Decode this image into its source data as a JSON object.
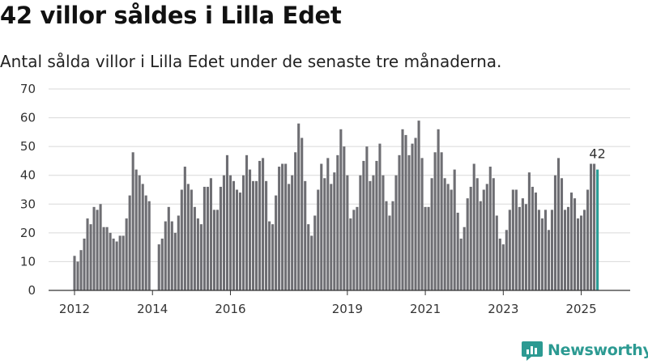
{
  "title": "42 villor såldes i Lilla Edet",
  "subtitle": "Antal sålda villor i Lilla Edet under de senaste tre månaderna.",
  "brand": {
    "name": "Newsworthy",
    "icon": "newsworthy-logo-icon",
    "color": "#2c9a92"
  },
  "colors": {
    "bar": "#6e6e73",
    "highlight": "#2a9d96",
    "grid": "#d9d9d9",
    "axis": "#333333"
  },
  "chart_data": {
    "type": "bar",
    "title": "42 villor såldes i Lilla Edet",
    "subtitle": "Antal sålda villor i Lilla Edet under de senaste tre månaderna.",
    "xlabel": "",
    "ylabel": "",
    "ylim": [
      0,
      70
    ],
    "y_ticks": [
      0,
      10,
      20,
      30,
      40,
      50,
      60,
      70
    ],
    "x_ticks": [
      {
        "label": "2012",
        "at": "2012-01"
      },
      {
        "label": "2014",
        "at": "2014-01"
      },
      {
        "label": "2016",
        "at": "2016-01"
      },
      {
        "label": "2019",
        "at": "2019-01"
      },
      {
        "label": "2021",
        "at": "2021-01"
      },
      {
        "label": "2023",
        "at": "2023-01"
      },
      {
        "label": "2025",
        "at": "2025-01"
      }
    ],
    "grid": true,
    "start_month": "2012-01",
    "values": [
      12,
      10,
      14,
      18,
      25,
      23,
      29,
      28,
      30,
      22,
      22,
      20,
      18,
      17,
      19,
      19,
      25,
      33,
      48,
      42,
      40,
      37,
      33,
      31,
      null,
      null,
      16,
      18,
      24,
      29,
      24,
      20,
      26,
      35,
      43,
      37,
      35,
      29,
      25,
      23,
      36,
      36,
      39,
      28,
      28,
      36,
      40,
      47,
      40,
      38,
      35,
      34,
      40,
      47,
      42,
      38,
      38,
      45,
      46,
      38,
      24,
      23,
      33,
      43,
      44,
      44,
      37,
      40,
      48,
      58,
      53,
      38,
      23,
      19,
      26,
      35,
      44,
      39,
      46,
      37,
      41,
      47,
      56,
      50,
      40,
      25,
      28,
      29,
      40,
      45,
      50,
      38,
      40,
      45,
      51,
      40,
      31,
      26,
      31,
      40,
      47,
      56,
      54,
      47,
      51,
      53,
      59,
      46,
      29,
      29,
      39,
      48,
      56,
      48,
      39,
      37,
      35,
      42,
      27,
      18,
      22,
      32,
      36,
      44,
      39,
      31,
      35,
      37,
      43,
      39,
      26,
      18,
      16,
      21,
      28,
      35,
      35,
      29,
      32,
      30,
      41,
      36,
      34,
      28,
      25,
      28,
      21,
      28,
      40,
      46,
      39,
      28,
      29,
      34,
      32,
      25,
      26,
      28,
      35,
      44,
      44,
      42
    ],
    "highlight_last": true,
    "annotation": {
      "label": "42"
    }
  }
}
